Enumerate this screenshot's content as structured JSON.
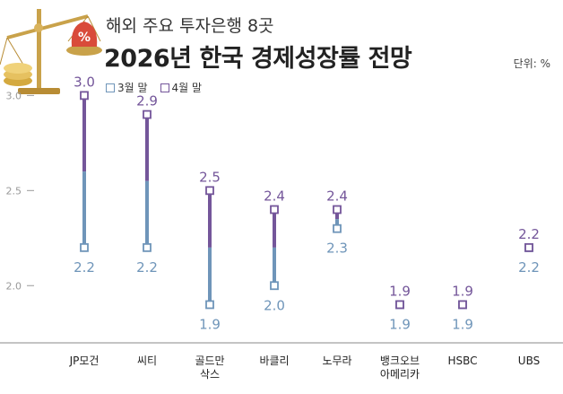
{
  "subtitle": "해외 주요 투자은행 8곳",
  "title": "2026년 한국 경제성장률 전망",
  "unit": "단위: %",
  "colors": {
    "march": "#6f95b9",
    "april": "#74569a",
    "grid": "#cccccc",
    "axis": "#999999"
  },
  "chart_data": {
    "type": "dumbbell",
    "categories": [
      "JP모건",
      "씨티",
      "골드만\n삭스",
      "바클리",
      "노무라",
      "뱅크오브\n아메리카",
      "HSBC",
      "UBS"
    ],
    "series": [
      {
        "name": "3월 말",
        "values": [
          2.2,
          2.2,
          1.9,
          2.0,
          2.3,
          1.9,
          1.9,
          2.2
        ]
      },
      {
        "name": "4월 말",
        "values": [
          3.0,
          2.9,
          2.5,
          2.4,
          2.4,
          1.9,
          1.9,
          2.2
        ]
      }
    ],
    "y_ticks": [
      "2.0",
      "2.5",
      "3.0"
    ],
    "ylim": [
      1.6,
      3.2
    ],
    "grid": false,
    "legend_position": "top-left"
  }
}
